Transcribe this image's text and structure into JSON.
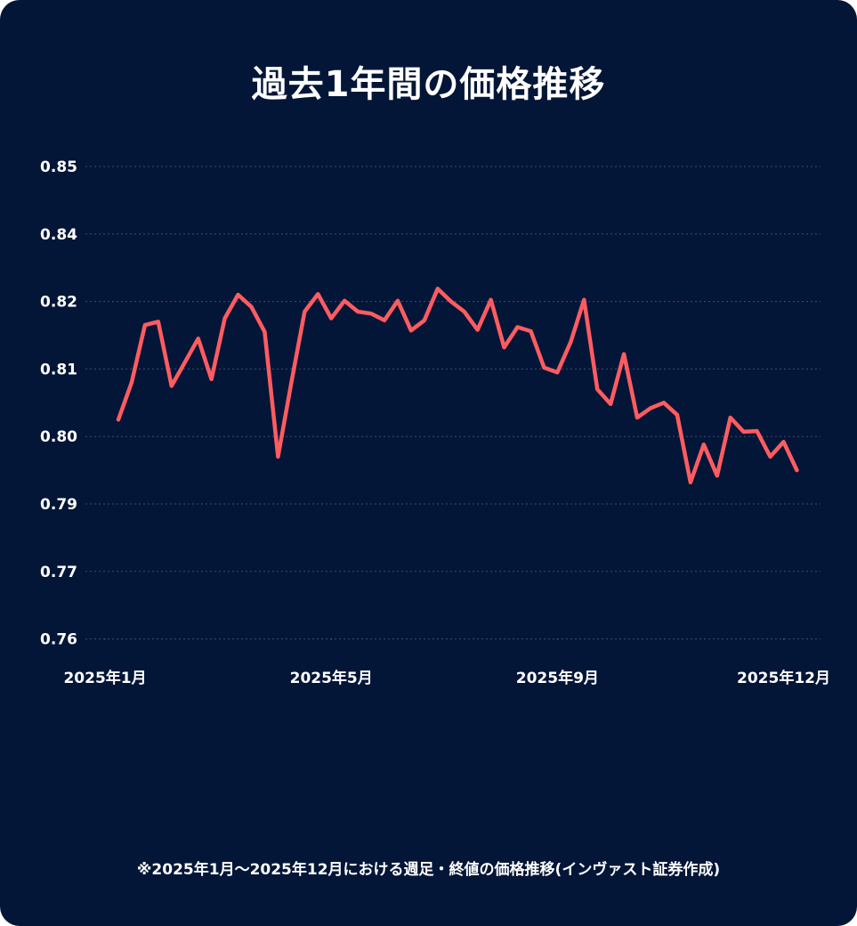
{
  "title": "過去1年間の価格推移",
  "footnote": "※2025年1月～2025年12月における週足・終値の価格推移(インヴァスト証券作成)",
  "colors": {
    "background": "#041637",
    "line": "#ff5c61",
    "grid": "#3d4f6e",
    "text": "#ffffff"
  },
  "chart_data": {
    "type": "line",
    "title": "過去1年間の価格推移",
    "xlabel": "",
    "ylabel": "",
    "y_ticks": [
      "0.85",
      "0.84",
      "0.82",
      "0.81",
      "0.80",
      "0.79",
      "0.77",
      "0.76"
    ],
    "x_ticks": [
      {
        "label": "2025年1月",
        "index": -1
      },
      {
        "label": "2025年5月",
        "index": 16
      },
      {
        "label": "2025年9月",
        "index": 33
      },
      {
        "label": "2025年12月",
        "index": 50
      }
    ],
    "grid": "horizontal dotted",
    "legend": "none",
    "series": [
      {
        "values": [
          0.8025,
          0.808,
          0.8165,
          0.817,
          0.8075,
          0.811,
          0.8145,
          0.8085,
          0.8175,
          0.822,
          0.8192,
          0.8155,
          0.797,
          0.808,
          0.8185,
          0.8222,
          0.8175,
          0.8202,
          0.8185,
          0.8182,
          0.8172,
          0.8202,
          0.8157,
          0.8172,
          0.8238,
          0.82,
          0.8185,
          0.8158,
          0.8205,
          0.8132,
          0.8162,
          0.8156,
          0.8102,
          0.8095,
          0.814,
          0.8205,
          0.807,
          0.8048,
          0.8122,
          0.8028,
          0.8042,
          0.805,
          0.8032,
          0.7932,
          0.7988,
          0.7942,
          0.8028,
          0.8007,
          0.8008,
          0.797,
          0.7992,
          0.795
        ]
      }
    ]
  }
}
